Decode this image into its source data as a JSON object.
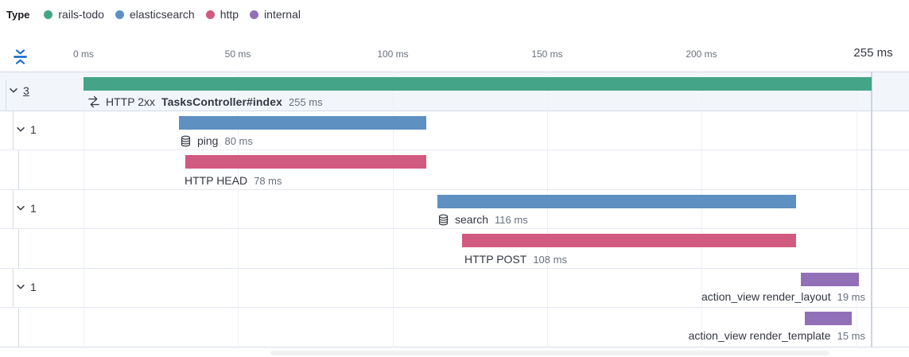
{
  "colors": {
    "rails-todo": "#44a487",
    "elasticsearch": "#5e90c2",
    "http": "#d15a80",
    "internal": "#9170b8"
  },
  "legend": {
    "title": "Type",
    "items": [
      {
        "label": "rails-todo",
        "type": "rails-todo"
      },
      {
        "label": "elasticsearch",
        "type": "elasticsearch"
      },
      {
        "label": "http",
        "type": "http"
      },
      {
        "label": "internal",
        "type": "internal"
      }
    ]
  },
  "timeline": {
    "ticks": [
      {
        "label": "0 ms",
        "ms": 0
      },
      {
        "label": "50 ms",
        "ms": 50
      },
      {
        "label": "100 ms",
        "ms": 100
      },
      {
        "label": "150 ms",
        "ms": 150
      },
      {
        "label": "200 ms",
        "ms": 200
      }
    ],
    "end": {
      "label": "255 ms",
      "ms": 255
    }
  },
  "chart_data": {
    "type": "waterfall-trace",
    "x_unit": "ms",
    "x_range": [
      0,
      255
    ],
    "rows": [
      {
        "kind": "transaction",
        "toggle_count": "3",
        "icon": "merge-icon",
        "prefix": "HTTP 2xx",
        "name": "TasksController#index",
        "duration": "255 ms",
        "type": "rails-todo",
        "start_ms": 0,
        "duration_ms": 255
      },
      {
        "kind": "span-group",
        "toggle_count": "1",
        "icon": "database-icon",
        "prefix": "",
        "name": "ping",
        "duration": "80 ms",
        "type": "elasticsearch",
        "start_ms": 31,
        "duration_ms": 80
      },
      {
        "kind": "span",
        "prefix": "",
        "name": "HTTP HEAD",
        "duration": "78 ms",
        "type": "http",
        "start_ms": 33,
        "duration_ms": 78
      },
      {
        "kind": "span-group",
        "toggle_count": "1",
        "icon": "database-icon",
        "prefix": "",
        "name": "search",
        "duration": "116 ms",
        "type": "elasticsearch",
        "start_ms": 114.5,
        "duration_ms": 116
      },
      {
        "kind": "span",
        "prefix": "",
        "name": "HTTP POST",
        "duration": "108 ms",
        "type": "http",
        "start_ms": 122.5,
        "duration_ms": 108
      },
      {
        "kind": "span-group",
        "toggle_count": "1",
        "prefix": "",
        "name": "action_view render_layout",
        "duration": "19 ms",
        "type": "internal",
        "start_ms": 232,
        "duration_ms": 19
      },
      {
        "kind": "span",
        "prefix": "",
        "name": "action_view render_template",
        "duration": "15 ms",
        "type": "internal",
        "start_ms": 233.5,
        "duration_ms": 15
      }
    ]
  }
}
